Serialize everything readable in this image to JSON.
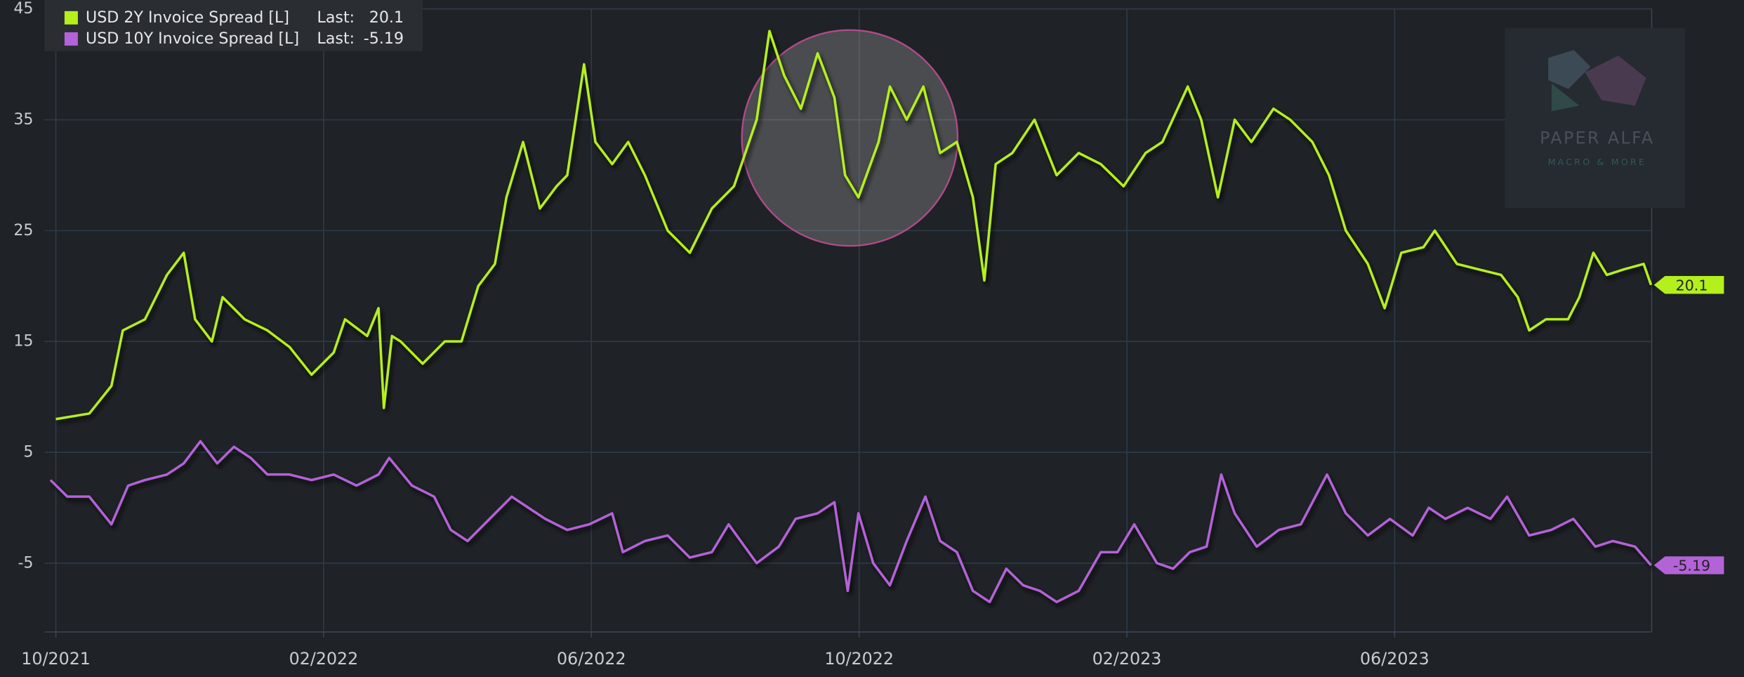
{
  "chart_data": {
    "type": "line",
    "xlim": [
      -0.17,
      23.84
    ],
    "xticks": [
      {
        "value": 0,
        "label": "10/2021"
      },
      {
        "value": 4,
        "label": "02/2022"
      },
      {
        "value": 8,
        "label": "06/2022"
      },
      {
        "value": 12,
        "label": "10/2022"
      },
      {
        "value": 16,
        "label": "02/2023"
      },
      {
        "value": 20,
        "label": "06/2023"
      }
    ],
    "ylim": [
      -11.2,
      45
    ],
    "yticks": [
      -5,
      5,
      15,
      25,
      35,
      45
    ],
    "grid": true,
    "legend_last_text": "Last:",
    "watermark": {
      "title": "PAPER ALFA",
      "subtitle": "MACRO & MORE"
    },
    "series": [
      {
        "name": "USD 2Y Invoice Spread [L]",
        "color": "#b4f01c",
        "x": [
          0,
          0.5,
          0.83,
          1,
          1.33,
          1.66,
          1.91,
          2.08,
          2.33,
          2.49,
          2.82,
          3.16,
          3.49,
          3.82,
          4.15,
          4.32,
          4.65,
          4.82,
          4.9,
          5.02,
          5.15,
          5.48,
          5.81,
          6.06,
          6.31,
          6.56,
          6.73,
          6.98,
          7.23,
          7.48,
          7.64,
          7.89,
          8.06,
          8.31,
          8.55,
          8.8,
          9.14,
          9.47,
          9.8,
          10.13,
          10.47,
          10.66,
          10.88,
          11.13,
          11.38,
          11.63,
          11.79,
          11.99,
          12.29,
          12.46,
          12.71,
          12.96,
          13.21,
          13.46,
          13.7,
          13.87,
          14.04,
          14.29,
          14.62,
          14.95,
          15.28,
          15.61,
          15.95,
          16.28,
          16.53,
          16.91,
          17.11,
          17.36,
          17.61,
          17.86,
          18.19,
          18.44,
          18.77,
          19.02,
          19.27,
          19.6,
          19.85,
          20.1,
          20.43,
          20.6,
          20.93,
          21.26,
          21.59,
          21.84,
          22.01,
          22.26,
          22.59,
          22.76,
          22.97,
          23.17,
          23.42,
          23.72,
          23.83
        ],
        "values": [
          8,
          8.5,
          11,
          16,
          17,
          21,
          23,
          17,
          15,
          19,
          17,
          16,
          14.5,
          12,
          14,
          17,
          15.5,
          18,
          9,
          15.5,
          15,
          13,
          15,
          15,
          20,
          22,
          28,
          33,
          27,
          29,
          30,
          40,
          33,
          31,
          33,
          30,
          25,
          23,
          27,
          29,
          35,
          43,
          39,
          36,
          41,
          37,
          30,
          28,
          33,
          38,
          35,
          38,
          32,
          33,
          28,
          20.5,
          31,
          32,
          35,
          30,
          32,
          31,
          29,
          32,
          33,
          38,
          35,
          28,
          35,
          33,
          36,
          35,
          33,
          30,
          25,
          22,
          18,
          23,
          23.5,
          25,
          22,
          21.5,
          21,
          19,
          16,
          17,
          17,
          19,
          23,
          21,
          21.5,
          22,
          20.1
        ]
      },
      {
        "name": "USD 10Y Invoice Spread [L]",
        "color": "#b462d8",
        "x": [
          -0.08,
          0.17,
          0.5,
          0.83,
          1.08,
          1.33,
          1.66,
          1.91,
          2.16,
          2.41,
          2.66,
          2.91,
          3.16,
          3.49,
          3.82,
          4.15,
          4.49,
          4.82,
          4.98,
          5.32,
          5.65,
          5.9,
          6.15,
          6.48,
          6.81,
          7.06,
          7.31,
          7.64,
          7.97,
          8.31,
          8.47,
          8.8,
          9.14,
          9.47,
          9.8,
          10.05,
          10.47,
          10.8,
          11.05,
          11.38,
          11.63,
          11.83,
          11.99,
          12.21,
          12.46,
          12.71,
          12.99,
          13.21,
          13.46,
          13.7,
          13.95,
          14.2,
          14.45,
          14.7,
          14.95,
          15.28,
          15.61,
          15.86,
          16.11,
          16.45,
          16.69,
          16.94,
          17.19,
          17.41,
          17.61,
          17.94,
          18.27,
          18.6,
          18.99,
          19.27,
          19.6,
          19.93,
          20.27,
          20.51,
          20.76,
          21.09,
          21.43,
          21.68,
          22.01,
          22.34,
          22.67,
          23,
          23.26,
          23.59,
          23.83
        ],
        "values": [
          2.5,
          1,
          1,
          -1.5,
          2,
          2.5,
          3,
          4,
          6,
          4,
          5.5,
          4.5,
          3,
          3,
          2.5,
          3,
          2,
          3,
          4.5,
          2,
          1,
          -2,
          -3,
          -1,
          1,
          0,
          -1,
          -2,
          -1.5,
          -0.5,
          -4,
          -3,
          -2.5,
          -4.5,
          -4,
          -1.5,
          -5,
          -3.5,
          -1,
          -0.5,
          0.5,
          -7.5,
          -0.5,
          -5,
          -7,
          -3,
          1,
          -3,
          -4,
          -7.5,
          -8.5,
          -5.5,
          -7,
          -7.5,
          -8.5,
          -7.5,
          -4,
          -4,
          -1.5,
          -5,
          -5.5,
          -4,
          -3.5,
          3,
          -0.5,
          -3.5,
          -2,
          -1.5,
          3,
          -0.5,
          -2.5,
          -1,
          -2.5,
          0,
          -1,
          0,
          -1,
          1,
          -2.5,
          -2,
          -1,
          -3.5,
          -3,
          -3.5,
          -5.19
        ]
      }
    ]
  }
}
